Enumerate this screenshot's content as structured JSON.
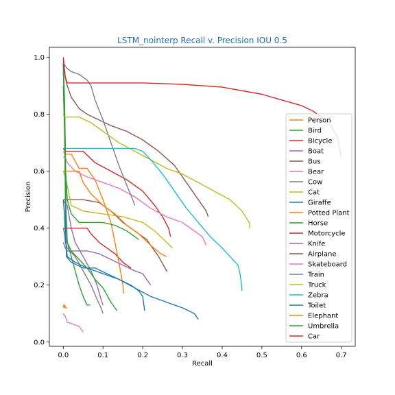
{
  "chart_data": {
    "type": "line",
    "title": "LSTM_nointerp Recall v. Precision IOU 0.5",
    "xlabel": "Recall",
    "ylabel": "Precision",
    "xlim": [
      -0.035,
      0.735
    ],
    "ylim": [
      -0.015,
      1.035
    ],
    "xticks": [
      "0.0",
      "0.1",
      "0.2",
      "0.3",
      "0.4",
      "0.5",
      "0.6",
      "0.7"
    ],
    "yticks": [
      "0.0",
      "0.2",
      "0.4",
      "0.6",
      "0.8",
      "1.0"
    ],
    "grid": false,
    "legend_position": "lower-right",
    "series": [
      {
        "name": "Person",
        "color": "#ff7f0e",
        "points": [
          [
            0,
            0.13
          ],
          [
            0.002,
            0.12
          ],
          [
            0.004,
            0.13
          ],
          [
            0.006,
            0.12
          ],
          [
            0.01,
            0.12
          ]
        ]
      },
      {
        "name": "Bird",
        "color": "#2ca02c",
        "points": [
          [
            0,
            0.98
          ],
          [
            0.003,
            0.86
          ],
          [
            0.005,
            0.7
          ],
          [
            0.007,
            0.45
          ],
          [
            0.01,
            0.35
          ],
          [
            0.02,
            0.3
          ],
          [
            0.03,
            0.25
          ],
          [
            0.04,
            0.2
          ],
          [
            0.05,
            0.16
          ],
          [
            0.06,
            0.13
          ],
          [
            0.068,
            0.13
          ]
        ]
      },
      {
        "name": "Bicycle",
        "color": "#d62728",
        "points": [
          [
            0,
            0.4
          ],
          [
            0.003,
            0.4
          ],
          [
            0.02,
            0.4
          ],
          [
            0.06,
            0.4
          ],
          [
            0.07,
            0.38
          ],
          [
            0.09,
            0.35
          ],
          [
            0.11,
            0.33
          ],
          [
            0.13,
            0.31
          ],
          [
            0.15,
            0.28
          ],
          [
            0.17,
            0.26
          ],
          [
            0.167,
            0.26
          ]
        ]
      },
      {
        "name": "Boat",
        "color": "#9467bd",
        "points": [
          [
            0,
            0.5
          ],
          [
            0.003,
            0.49
          ],
          [
            0.01,
            0.48
          ],
          [
            0.02,
            0.4
          ],
          [
            0.03,
            0.35
          ],
          [
            0.05,
            0.3
          ],
          [
            0.07,
            0.25
          ],
          [
            0.085,
            0.2
          ],
          [
            0.095,
            0.15
          ],
          [
            0.1,
            0.13
          ]
        ]
      },
      {
        "name": "Bus",
        "color": "#8c564b",
        "points": [
          [
            0,
            0.5
          ],
          [
            0.003,
            0.5
          ],
          [
            0.01,
            0.5
          ],
          [
            0.05,
            0.5
          ],
          [
            0.09,
            0.49
          ],
          [
            0.12,
            0.46
          ],
          [
            0.15,
            0.42
          ],
          [
            0.18,
            0.39
          ],
          [
            0.21,
            0.36
          ],
          [
            0.24,
            0.3
          ],
          [
            0.26,
            0.25
          ],
          [
            0.262,
            0.25
          ]
        ]
      },
      {
        "name": "Bear",
        "color": "#e377c2",
        "points": [
          [
            0,
            0.1
          ],
          [
            0.005,
            0.09
          ],
          [
            0.01,
            0.07
          ],
          [
            0.02,
            0.065
          ],
          [
            0.03,
            0.06
          ],
          [
            0.04,
            0.055
          ],
          [
            0.045,
            0.045
          ],
          [
            0.05,
            0.035
          ]
        ]
      },
      {
        "name": "Cow",
        "color": "#7f7f7f",
        "points": [
          [
            0,
            0.4
          ],
          [
            0.003,
            0.38
          ],
          [
            0.005,
            0.35
          ],
          [
            0.01,
            0.33
          ],
          [
            0.03,
            0.3
          ],
          [
            0.05,
            0.25
          ],
          [
            0.07,
            0.2
          ],
          [
            0.085,
            0.15
          ],
          [
            0.095,
            0.12
          ],
          [
            0.1,
            0.1
          ]
        ]
      },
      {
        "name": "Cat",
        "color": "#bcbd22",
        "points": [
          [
            0,
            0.6
          ],
          [
            0.005,
            0.58
          ],
          [
            0.01,
            0.55
          ],
          [
            0.02,
            0.48
          ],
          [
            0.05,
            0.46
          ],
          [
            0.1,
            0.45
          ],
          [
            0.15,
            0.44
          ],
          [
            0.2,
            0.42
          ],
          [
            0.23,
            0.39
          ],
          [
            0.26,
            0.35
          ],
          [
            0.275,
            0.33
          ]
        ]
      },
      {
        "name": "Giraffe",
        "color": "#1f77b4",
        "points": [
          [
            0,
            0.98
          ],
          [
            0.004,
            0.7
          ],
          [
            0.006,
            0.4
          ],
          [
            0.008,
            0.3
          ],
          [
            0.02,
            0.28
          ],
          [
            0.05,
            0.26
          ],
          [
            0.08,
            0.26
          ],
          [
            0.11,
            0.24
          ],
          [
            0.14,
            0.22
          ],
          [
            0.17,
            0.2
          ],
          [
            0.19,
            0.18
          ],
          [
            0.2,
            0.16
          ],
          [
            0.205,
            0.11
          ]
        ]
      },
      {
        "name": "Potted Plant",
        "color": "#ff7f0e",
        "points": [
          [
            0,
            0.67
          ],
          [
            0.005,
            0.66
          ],
          [
            0.02,
            0.66
          ],
          [
            0.04,
            0.61
          ],
          [
            0.06,
            0.61
          ],
          [
            0.08,
            0.57
          ],
          [
            0.1,
            0.5
          ],
          [
            0.12,
            0.42
          ],
          [
            0.13,
            0.35
          ],
          [
            0.14,
            0.28
          ],
          [
            0.15,
            0.2
          ],
          [
            0.152,
            0.17
          ]
        ]
      },
      {
        "name": "Horse",
        "color": "#2ca02c",
        "points": [
          [
            0,
            0.95
          ],
          [
            0.003,
            0.85
          ],
          [
            0.006,
            0.6
          ],
          [
            0.01,
            0.5
          ],
          [
            0.02,
            0.45
          ],
          [
            0.04,
            0.42
          ],
          [
            0.07,
            0.42
          ],
          [
            0.1,
            0.42
          ],
          [
            0.13,
            0.41
          ],
          [
            0.16,
            0.39
          ],
          [
            0.18,
            0.37
          ],
          [
            0.19,
            0.36
          ]
        ]
      },
      {
        "name": "Motorcycle",
        "color": "#d62728",
        "points": [
          [
            0,
            0.68
          ],
          [
            0.005,
            0.67
          ],
          [
            0.02,
            0.67
          ],
          [
            0.05,
            0.67
          ],
          [
            0.08,
            0.63
          ],
          [
            0.12,
            0.6
          ],
          [
            0.16,
            0.57
          ],
          [
            0.2,
            0.53
          ],
          [
            0.23,
            0.48
          ],
          [
            0.25,
            0.44
          ],
          [
            0.265,
            0.4
          ],
          [
            0.27,
            0.37
          ]
        ]
      },
      {
        "name": "Knife",
        "color": "#9467bd",
        "points": [
          [
            0,
            0.35
          ],
          [
            0.005,
            0.33
          ],
          [
            0.01,
            0.32
          ],
          [
            0.03,
            0.32
          ],
          [
            0.06,
            0.32
          ],
          [
            0.09,
            0.31
          ],
          [
            0.12,
            0.29
          ],
          [
            0.15,
            0.27
          ],
          [
            0.18,
            0.25
          ],
          [
            0.2,
            0.24
          ],
          [
            0.21,
            0.22
          ],
          [
            0.22,
            0.2
          ]
        ]
      },
      {
        "name": "Airplane",
        "color": "#8c564b",
        "points": [
          [
            0,
            0.99
          ],
          [
            0.005,
            0.93
          ],
          [
            0.01,
            0.9
          ],
          [
            0.02,
            0.86
          ],
          [
            0.04,
            0.82
          ],
          [
            0.06,
            0.8
          ],
          [
            0.09,
            0.78
          ],
          [
            0.12,
            0.76
          ],
          [
            0.16,
            0.74
          ],
          [
            0.2,
            0.71
          ],
          [
            0.24,
            0.67
          ],
          [
            0.28,
            0.62
          ],
          [
            0.31,
            0.56
          ],
          [
            0.34,
            0.5
          ],
          [
            0.36,
            0.46
          ],
          [
            0.365,
            0.44
          ]
        ]
      },
      {
        "name": "Skateboard",
        "color": "#e377c2",
        "points": [
          [
            0,
            0.65
          ],
          [
            0.005,
            0.65
          ],
          [
            0.01,
            0.63
          ],
          [
            0.03,
            0.6
          ],
          [
            0.06,
            0.58
          ],
          [
            0.1,
            0.56
          ],
          [
            0.14,
            0.54
          ],
          [
            0.18,
            0.51
          ],
          [
            0.22,
            0.47
          ],
          [
            0.26,
            0.44
          ],
          [
            0.3,
            0.42
          ],
          [
            0.33,
            0.39
          ],
          [
            0.35,
            0.37
          ],
          [
            0.36,
            0.34
          ]
        ]
      },
      {
        "name": "Train",
        "color": "#7f7f7f",
        "points": [
          [
            0,
            0.98
          ],
          [
            0.01,
            0.96
          ],
          [
            0.02,
            0.95
          ],
          [
            0.04,
            0.94
          ],
          [
            0.05,
            0.93
          ],
          [
            0.06,
            0.92
          ],
          [
            0.07,
            0.9
          ],
          [
            0.08,
            0.85
          ],
          [
            0.1,
            0.78
          ],
          [
            0.12,
            0.7
          ],
          [
            0.14,
            0.62
          ],
          [
            0.16,
            0.55
          ],
          [
            0.175,
            0.5
          ],
          [
            0.18,
            0.48
          ]
        ]
      },
      {
        "name": "Truck",
        "color": "#bcbd22",
        "points": [
          [
            0,
            0.8
          ],
          [
            0.005,
            0.79
          ],
          [
            0.04,
            0.79
          ],
          [
            0.07,
            0.77
          ],
          [
            0.1,
            0.74
          ],
          [
            0.14,
            0.7
          ],
          [
            0.18,
            0.67
          ],
          [
            0.22,
            0.64
          ],
          [
            0.26,
            0.61
          ],
          [
            0.3,
            0.59
          ],
          [
            0.34,
            0.56
          ],
          [
            0.38,
            0.53
          ],
          [
            0.42,
            0.5
          ],
          [
            0.45,
            0.46
          ],
          [
            0.468,
            0.42
          ],
          [
            0.47,
            0.4
          ]
        ]
      },
      {
        "name": "Zebra",
        "color": "#17becf",
        "points": [
          [
            0,
            0.68
          ],
          [
            0.02,
            0.68
          ],
          [
            0.1,
            0.68
          ],
          [
            0.15,
            0.68
          ],
          [
            0.18,
            0.68
          ],
          [
            0.2,
            0.67
          ],
          [
            0.22,
            0.64
          ],
          [
            0.25,
            0.59
          ],
          [
            0.28,
            0.53
          ],
          [
            0.31,
            0.47
          ],
          [
            0.34,
            0.42
          ],
          [
            0.37,
            0.37
          ],
          [
            0.4,
            0.33
          ],
          [
            0.42,
            0.3
          ],
          [
            0.44,
            0.27
          ],
          [
            0.445,
            0.24
          ],
          [
            0.448,
            0.21
          ],
          [
            0.45,
            0.18
          ]
        ]
      },
      {
        "name": "Toilet",
        "color": "#1f77b4",
        "points": [
          [
            0,
            0.5
          ],
          [
            0.003,
            0.45
          ],
          [
            0.006,
            0.35
          ],
          [
            0.01,
            0.3
          ],
          [
            0.03,
            0.28
          ],
          [
            0.06,
            0.26
          ],
          [
            0.1,
            0.24
          ],
          [
            0.14,
            0.22
          ],
          [
            0.18,
            0.19
          ],
          [
            0.22,
            0.16
          ],
          [
            0.26,
            0.14
          ],
          [
            0.3,
            0.12
          ],
          [
            0.33,
            0.1
          ],
          [
            0.34,
            0.08
          ]
        ]
      },
      {
        "name": "Elephant",
        "color": "#ff7f0e",
        "points": [
          [
            0,
            0.6
          ],
          [
            0.005,
            0.6
          ],
          [
            0.02,
            0.6
          ],
          [
            0.04,
            0.6
          ],
          [
            0.05,
            0.56
          ],
          [
            0.07,
            0.52
          ],
          [
            0.1,
            0.48
          ],
          [
            0.13,
            0.45
          ],
          [
            0.16,
            0.41
          ],
          [
            0.19,
            0.38
          ],
          [
            0.22,
            0.34
          ],
          [
            0.245,
            0.31
          ],
          [
            0.26,
            0.3
          ]
        ]
      },
      {
        "name": "Umbrella",
        "color": "#2ca02c",
        "points": [
          [
            0,
            0.9
          ],
          [
            0.003,
            0.75
          ],
          [
            0.006,
            0.5
          ],
          [
            0.01,
            0.35
          ],
          [
            0.02,
            0.32
          ],
          [
            0.04,
            0.29
          ],
          [
            0.06,
            0.26
          ],
          [
            0.08,
            0.22
          ],
          [
            0.1,
            0.19
          ],
          [
            0.12,
            0.14
          ],
          [
            0.13,
            0.12
          ],
          [
            0.135,
            0.11
          ]
        ]
      },
      {
        "name": "Car",
        "color": "#d62728",
        "points": [
          [
            0,
            1.0
          ],
          [
            0.005,
            0.93
          ],
          [
            0.01,
            0.91
          ],
          [
            0.1,
            0.91
          ],
          [
            0.2,
            0.91
          ],
          [
            0.3,
            0.905
          ],
          [
            0.4,
            0.895
          ],
          [
            0.5,
            0.87
          ],
          [
            0.55,
            0.85
          ],
          [
            0.6,
            0.83
          ],
          [
            0.63,
            0.81
          ],
          [
            0.65,
            0.79
          ],
          [
            0.67,
            0.77
          ],
          [
            0.69,
            0.72
          ],
          [
            0.7,
            0.65
          ]
        ]
      }
    ]
  }
}
